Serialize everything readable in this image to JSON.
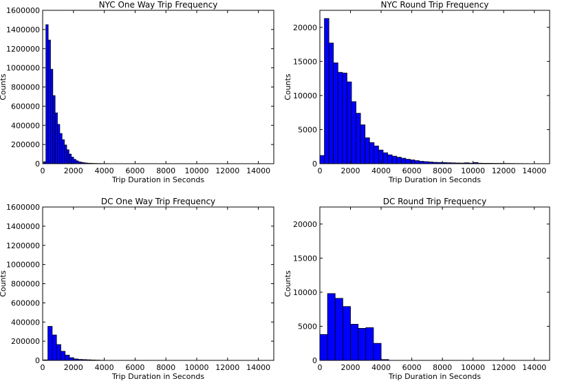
{
  "chart_data": [
    {
      "type": "bar",
      "title": "NYC One Way Trip Frequency",
      "xlabel": "Trip Duration in Seconds",
      "ylabel": "Counts",
      "xlim": [
        0,
        15000
      ],
      "ylim": [
        0,
        1600000
      ],
      "xticks": [
        0,
        2000,
        4000,
        6000,
        8000,
        10000,
        12000,
        14000
      ],
      "xtick_labels": [
        "0",
        "2000",
        "4000",
        "6000",
        "8000",
        "10000",
        "12000",
        "14000"
      ],
      "yticks": [
        0,
        200000,
        400000,
        600000,
        800000,
        1000000,
        1200000,
        1400000,
        1600000
      ],
      "ytick_labels": [
        "0",
        "200000",
        "400000",
        "600000",
        "800000",
        "1000000",
        "1200000",
        "1400000",
        "1600000"
      ],
      "bin_start": 60,
      "bin_width": 150,
      "values": [
        20000,
        1450000,
        1290000,
        985000,
        710000,
        530000,
        410000,
        315000,
        250000,
        195000,
        145000,
        100000,
        68000,
        45000,
        30000,
        20000,
        14000,
        10000,
        7000,
        5000,
        4000,
        3000,
        2500,
        2000,
        1800,
        1500,
        1200,
        1000,
        800,
        600,
        500
      ]
    },
    {
      "type": "bar",
      "title": "NYC Round Trip Frequency",
      "xlabel": "Trip Duration in Seconds",
      "ylabel": "Counts",
      "xlim": [
        0,
        15000
      ],
      "ylim": [
        0,
        22500
      ],
      "xticks": [
        0,
        2000,
        4000,
        6000,
        8000,
        10000,
        12000,
        14000
      ],
      "xtick_labels": [
        "0",
        "2000",
        "4000",
        "6000",
        "8000",
        "10000",
        "12000",
        "14000"
      ],
      "yticks": [
        0,
        5000,
        10000,
        15000,
        20000
      ],
      "ytick_labels": [
        "0",
        "5000",
        "10000",
        "15000",
        "20000"
      ],
      "bin_start": 0,
      "bin_width": 295,
      "values": [
        1200,
        21300,
        17700,
        14800,
        13400,
        13300,
        12000,
        9100,
        7400,
        5700,
        3800,
        3100,
        2600,
        2000,
        1600,
        1300,
        1100,
        950,
        800,
        650,
        550,
        450,
        350,
        300,
        250,
        200,
        180,
        160,
        140,
        120,
        100,
        90,
        130,
        80,
        160,
        70,
        60,
        55,
        50,
        45,
        40,
        35,
        30,
        25,
        20,
        15,
        10,
        8,
        5,
        3
      ]
    },
    {
      "type": "bar",
      "title": "DC One Way Trip Frequency",
      "xlabel": "Trip Duration in Seconds",
      "ylabel": "Counts",
      "xlim": [
        0,
        15000
      ],
      "ylim": [
        0,
        1600000
      ],
      "xticks": [
        0,
        2000,
        4000,
        6000,
        8000,
        10000,
        12000,
        14000
      ],
      "xtick_labels": [
        "0",
        "2000",
        "4000",
        "6000",
        "8000",
        "10000",
        "12000",
        "14000"
      ],
      "yticks": [
        0,
        200000,
        400000,
        600000,
        800000,
        1000000,
        1200000,
        1400000,
        1600000
      ],
      "ytick_labels": [
        "0",
        "200000",
        "400000",
        "600000",
        "800000",
        "1000000",
        "1200000",
        "1400000",
        "1600000"
      ],
      "bin_start": 60,
      "bin_width": 280,
      "values": [
        5000,
        355000,
        265000,
        165000,
        95000,
        55000,
        28000,
        15000,
        10000,
        8000,
        6000,
        4000,
        3000,
        1500
      ]
    },
    {
      "type": "bar",
      "title": "DC Round Trip Frequency",
      "xlabel": "Trip Duration in Seconds",
      "ylabel": "Counts",
      "xlim": [
        0,
        15000
      ],
      "ylim": [
        0,
        22500
      ],
      "xticks": [
        0,
        2000,
        4000,
        6000,
        8000,
        10000,
        12000,
        14000
      ],
      "xtick_labels": [
        "0",
        "2000",
        "4000",
        "6000",
        "8000",
        "10000",
        "12000",
        "14000"
      ],
      "yticks": [
        0,
        5000,
        10000,
        15000,
        20000
      ],
      "ytick_labels": [
        "0",
        "5000",
        "10000",
        "15000",
        "20000"
      ],
      "bin_start": 0,
      "bin_width": 500,
      "values": [
        3800,
        9800,
        9100,
        7900,
        5300,
        4700,
        4800,
        2500,
        120
      ]
    }
  ],
  "bar_color": "#0000ff",
  "edge_color": "#000000"
}
